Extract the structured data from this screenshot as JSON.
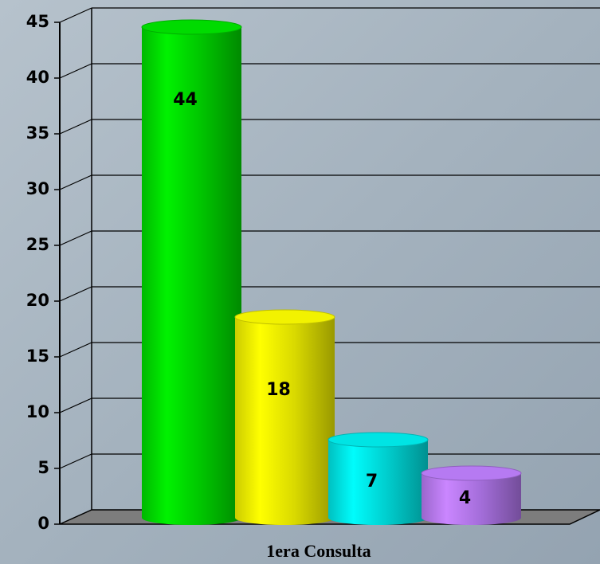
{
  "chart_data": {
    "type": "bar3d-cylinder",
    "categories": [
      "1era Consulta"
    ],
    "series": [
      {
        "color": "#00e600",
        "values": [
          44
        ]
      },
      {
        "color": "#ffff00",
        "values": [
          18
        ]
      },
      {
        "color": "#00f0f0",
        "values": [
          7
        ]
      },
      {
        "color": "#c080ff",
        "values": [
          4
        ]
      }
    ],
    "ylim": [
      0,
      45
    ],
    "yticks": [
      0,
      5,
      10,
      15,
      20,
      25,
      30,
      35,
      40,
      45
    ],
    "grid": true
  }
}
